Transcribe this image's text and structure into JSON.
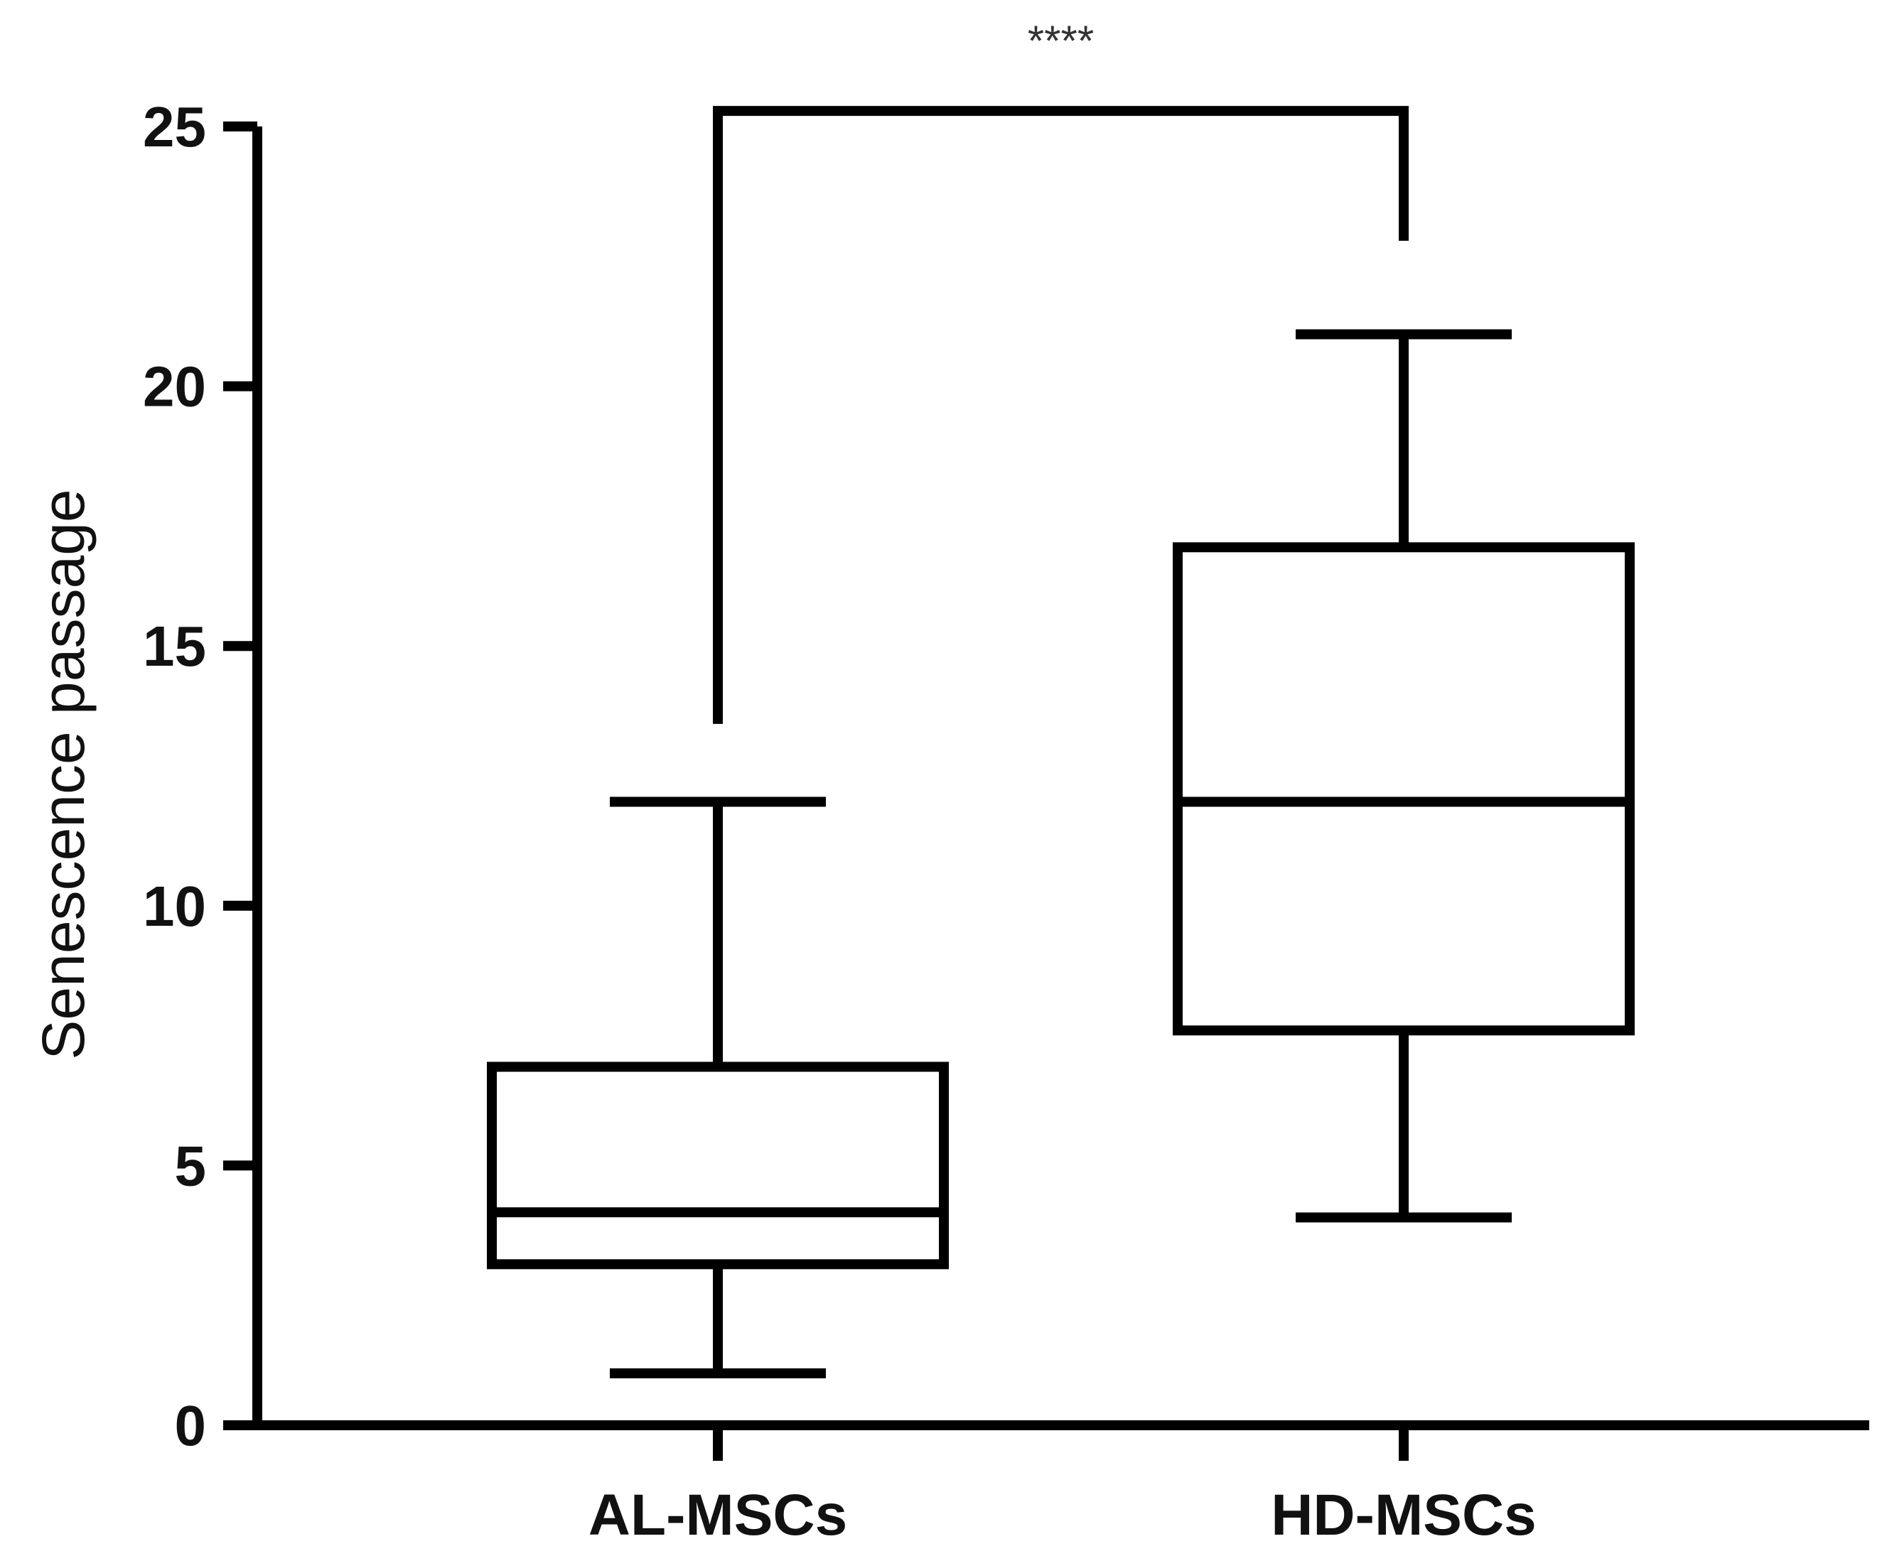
{
  "chart_data": {
    "type": "box",
    "title": "",
    "xlabel": "",
    "ylabel": "Senescence passage",
    "ylim": [
      0,
      25
    ],
    "yticks": [
      0,
      5,
      10,
      15,
      20,
      25
    ],
    "grid": false,
    "legend": "none",
    "categories": [
      "AL-MSCs",
      "HD-MSCs"
    ],
    "boxes": [
      {
        "category": "AL-MSCs",
        "min": 1,
        "q1": 3.1,
        "median": 4.1,
        "q3": 6.9,
        "max": 12
      },
      {
        "category": "HD-MSCs",
        "min": 4,
        "q1": 7.6,
        "median": 12,
        "q3": 16.9,
        "max": 21
      }
    ],
    "annotations": [
      {
        "type": "significance-bracket",
        "from": "AL-MSCs",
        "to": "HD-MSCs",
        "label": "****",
        "y": 25.3,
        "left_end": 13.5,
        "right_end": 22.8
      }
    ],
    "colors": {
      "stroke": "#000000",
      "background": "#ffffff"
    }
  }
}
